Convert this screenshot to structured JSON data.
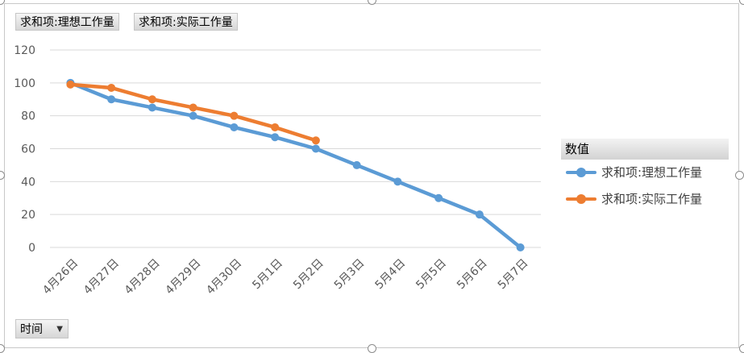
{
  "field_buttons": [
    "求和项:理想工作量",
    "求和项:实际工作量"
  ],
  "legend": {
    "title": "数值",
    "items": [
      {
        "label": "求和项:理想工作量",
        "color": "#5b9bd5"
      },
      {
        "label": "求和项:实际工作量",
        "color": "#ed7d31"
      }
    ]
  },
  "axis_filter": {
    "label": "时间",
    "icon": "dropdown-arrow-icon"
  },
  "chart_data": {
    "type": "line",
    "categories": [
      "4月26日",
      "4月27日",
      "4月28日",
      "4月29日",
      "4月30日",
      "5月1日",
      "5月2日",
      "5月3日",
      "5月4日",
      "5月5日",
      "5月6日",
      "5月7日"
    ],
    "series": [
      {
        "name": "求和项:理想工作量",
        "color": "#5b9bd5",
        "values": [
          100,
          90,
          85,
          80,
          73,
          67,
          60,
          50,
          40,
          30,
          20,
          0
        ]
      },
      {
        "name": "求和项:实际工作量",
        "color": "#ed7d31",
        "values": [
          99,
          97,
          90,
          85,
          80,
          73,
          65,
          null,
          null,
          null,
          null,
          null
        ]
      }
    ],
    "ylim": [
      0,
      120
    ],
    "yticks": [
      0,
      20,
      40,
      60,
      80,
      100,
      120
    ],
    "grid": true,
    "legend_position": "right"
  }
}
